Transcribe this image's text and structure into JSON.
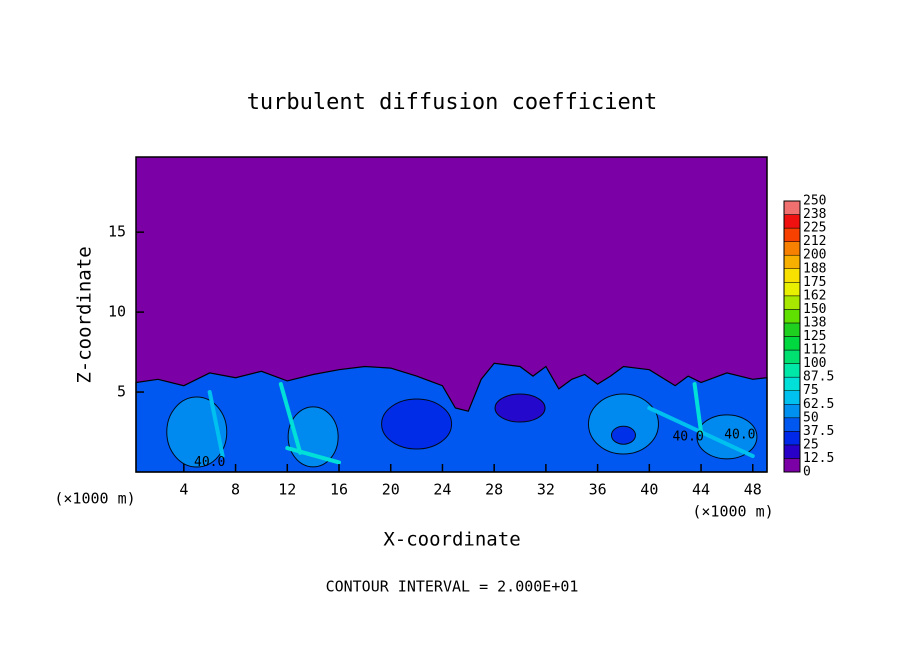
{
  "chart_data": {
    "type": "contour",
    "title": "turbulent diffusion coefficient",
    "x_label": "X-coordinate",
    "y_label": "Z-coordinate",
    "x_unit_label": "(×1000 m)",
    "xlim": [
      0.3,
      49.1
    ],
    "xticks": [
      4,
      8,
      12,
      16,
      20,
      24,
      28,
      32,
      36,
      40,
      44,
      48
    ],
    "ylim": [
      0,
      19.7
    ],
    "yticks": [
      5,
      10,
      15
    ],
    "contour_label": "40.0",
    "footer": "CONTOUR INTERVAL = 2.000E+01",
    "colorbar": {
      "levels": [
        0,
        12.5,
        25,
        37.5,
        50,
        62.5,
        75,
        87.5,
        100,
        112,
        125,
        138,
        150,
        162,
        175,
        188,
        200,
        212,
        225,
        238,
        250
      ],
      "colors": [
        "#7b00a6",
        "#2800c8",
        "#0028e8",
        "#0058f0",
        "#0090f0",
        "#00c0f0",
        "#00e0d8",
        "#00e8a8",
        "#00e070",
        "#00d840",
        "#20d020",
        "#60e000",
        "#a8e800",
        "#e8f000",
        "#f8e000",
        "#f8b000",
        "#f88000",
        "#f84000",
        "#f01010",
        "#f07070"
      ]
    }
  }
}
